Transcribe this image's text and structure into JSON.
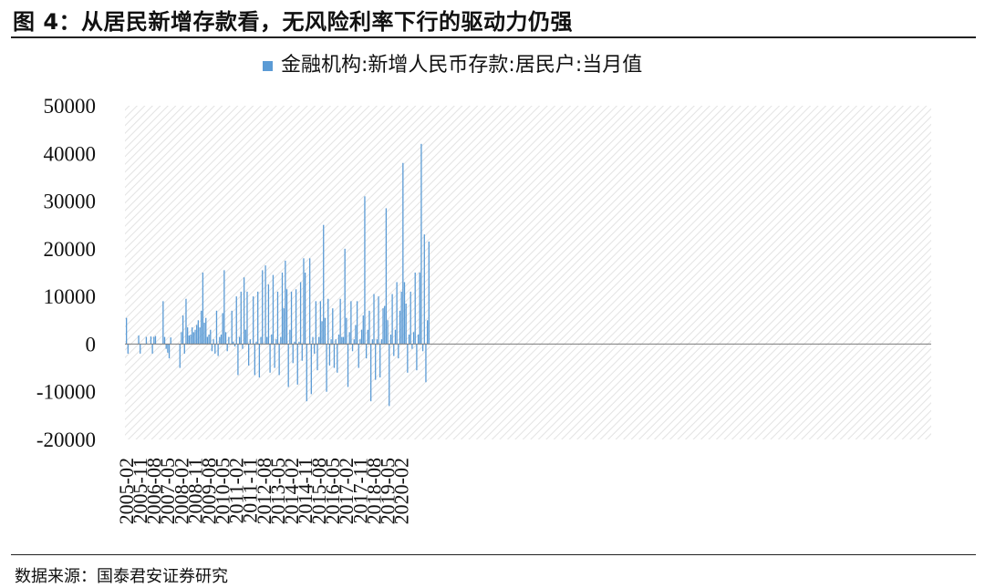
{
  "figure": {
    "title": "图 4：从居民新增存款看，无风险利率下行的驱动力仍强",
    "source": "数据来源：国泰君安证券研究"
  },
  "chart_data": {
    "type": "bar",
    "title": "",
    "xlabel": "",
    "ylabel": "",
    "ylim": [
      -20000,
      50000
    ],
    "yticks": [
      50000,
      40000,
      30000,
      20000,
      10000,
      0,
      -10000,
      -20000
    ],
    "grid": false,
    "background_pattern": "diagonal-hatch",
    "legend_position": "top-center",
    "x_start": "2005-02",
    "x_tick_labels": [
      "2005-02",
      "2005-11",
      "2006-08",
      "2007-05",
      "2008-02",
      "2008-11",
      "2009-08",
      "2010-05",
      "2011-02",
      "2011-11",
      "2012-08",
      "2013-05",
      "2014-02",
      "2014-11",
      "2015-08",
      "2016-05",
      "2017-02",
      "2017-11",
      "2018-08",
      "2019-05",
      "2020-02"
    ],
    "series": [
      {
        "name": "金融机构:新增人民币存款:居民户:当月值",
        "color": "#5b9bd5",
        "values": [
          5500,
          -2000,
          0,
          0,
          0,
          0,
          0,
          0,
          1800,
          -2000,
          0,
          0,
          0,
          1500,
          0,
          0,
          1600,
          -2000,
          1500,
          1700,
          0,
          0,
          0,
          0,
          9000,
          1500,
          -1000,
          -1800,
          -3000,
          1400,
          0,
          0,
          0,
          0,
          0,
          -5000,
          2500,
          6000,
          -2000,
          9500,
          3500,
          1800,
          2000,
          3500,
          2500,
          3000,
          4000,
          5000,
          3500,
          7000,
          15000,
          4500,
          5500,
          1500,
          2000,
          3000,
          -1500,
          1000,
          -2000,
          7000,
          -2500,
          1500,
          2000,
          6500,
          15500,
          2500,
          -1500,
          1500,
          0,
          7000,
          500,
          -500,
          10000,
          -6500,
          1500,
          11000,
          -1000,
          14000,
          3000,
          11000,
          -4500,
          1000,
          0,
          10000,
          -6500,
          500,
          11000,
          -7000,
          1500,
          15500,
          0,
          16500,
          1500,
          12500,
          -6000,
          2000,
          14500,
          -5000,
          1000,
          11000,
          -6500,
          1500,
          15000,
          7500,
          17500,
          11500,
          -9000,
          3000,
          11000,
          -4000,
          500,
          11500,
          -8500,
          500,
          13000,
          -3500,
          18000,
          15000,
          -12000,
          0,
          18000,
          -10500,
          1500,
          -2000,
          9000,
          -5500,
          1500,
          9000,
          4800,
          25000,
          5500,
          -10000,
          9500,
          -4500,
          1000,
          7500,
          -5000,
          1000,
          -6000,
          2000,
          9500,
          1500,
          1500,
          20000,
          5500,
          -9000,
          2500,
          9000,
          -1500,
          1000,
          4000,
          9000,
          -5000,
          1000,
          3000,
          6000,
          31000,
          -3000,
          3000,
          7000,
          -12000,
          1000,
          10500,
          -7500,
          1000,
          10000,
          -7000,
          1000,
          7500,
          8000,
          28500,
          5000,
          -13000,
          2000,
          10500,
          -2500,
          3000,
          13000,
          -3000,
          7000,
          11000,
          38000,
          13000,
          8500,
          -6000,
          2000,
          11000,
          -1000,
          2500,
          15000,
          -5500,
          2000,
          15000,
          42000,
          -1500,
          23000,
          -8000,
          5000,
          21500
        ]
      }
    ]
  }
}
